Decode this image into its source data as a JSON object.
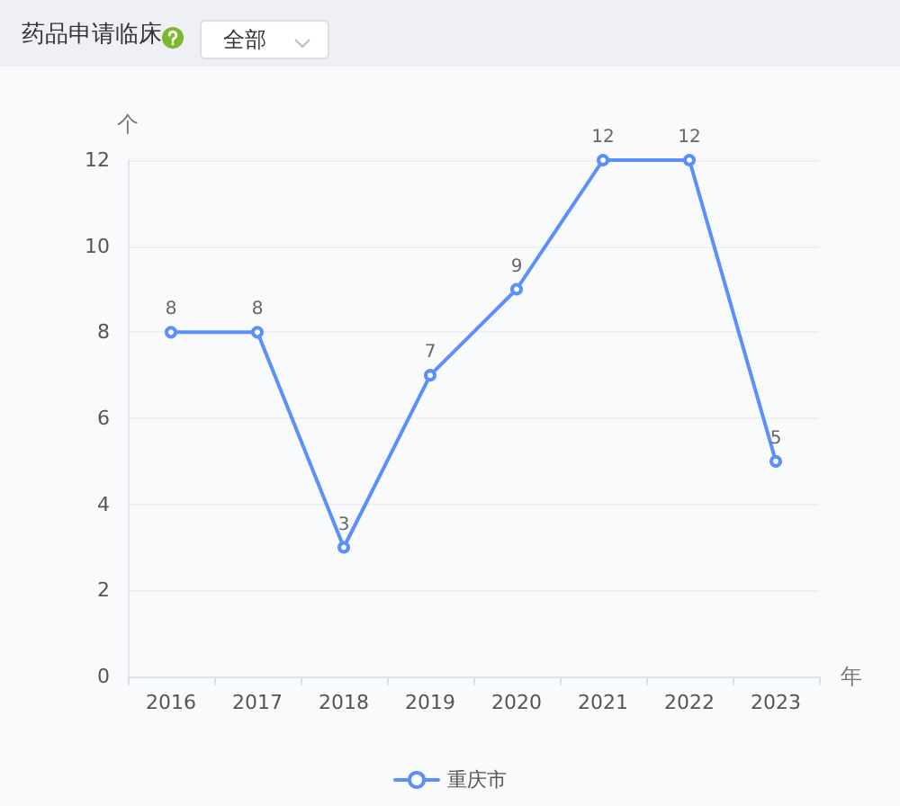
{
  "chart_data": {
    "type": "line",
    "title": "药品申请临床",
    "annotations": [
      "全部"
    ],
    "xlabel": "年",
    "ylabel": "个",
    "categories": [
      "2016",
      "2017",
      "2018",
      "2019",
      "2020",
      "2021",
      "2022",
      "2023"
    ],
    "series": [
      {
        "name": "重庆市",
        "color": "#5b8ff9",
        "values": [
          8,
          8,
          3,
          7,
          9,
          12,
          12,
          5
        ]
      }
    ],
    "ylim": [
      0,
      12
    ],
    "yticks": [
      0,
      2,
      4,
      6,
      8,
      10,
      12
    ],
    "grid": "y",
    "legend": "bottom",
    "marker": "circle",
    "data_labels": true
  }
}
